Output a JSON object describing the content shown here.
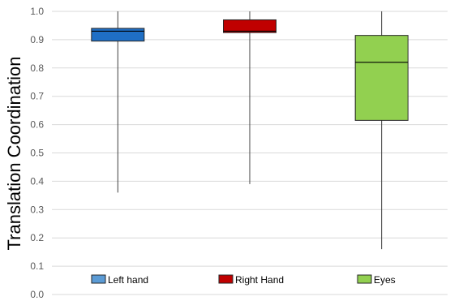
{
  "chart_data": {
    "type": "box",
    "title": "",
    "xlabel": "",
    "ylabel": "Translation Coordination",
    "ylim": [
      0.0,
      1.0
    ],
    "yticks": [
      0.0,
      0.1,
      0.2,
      0.3,
      0.4,
      0.5,
      0.6,
      0.7,
      0.8,
      0.9,
      1.0
    ],
    "ytick_labels": [
      "0.0",
      "0.1",
      "0.2",
      "0.3",
      "0.4",
      "0.5",
      "0.6",
      "0.7",
      "0.8",
      "0.9",
      "1.0"
    ],
    "grid": true,
    "legend_position": "bottom",
    "series": [
      {
        "name": "Left hand",
        "color": "#1f6fc5",
        "legend_color": "#5b9bd5",
        "min": 0.36,
        "q1": 0.895,
        "median": 0.93,
        "q3": 0.94,
        "max": 1.0
      },
      {
        "name": "Right Hand",
        "color": "#c00000",
        "legend_color": "#c00000",
        "min": 0.39,
        "q1": 0.925,
        "median": 0.93,
        "q3": 0.97,
        "max": 1.0
      },
      {
        "name": "Eyes",
        "color": "#92d050",
        "legend_color": "#92d050",
        "min": 0.16,
        "q1": 0.615,
        "median": 0.82,
        "q3": 0.915,
        "max": 1.0
      }
    ]
  }
}
